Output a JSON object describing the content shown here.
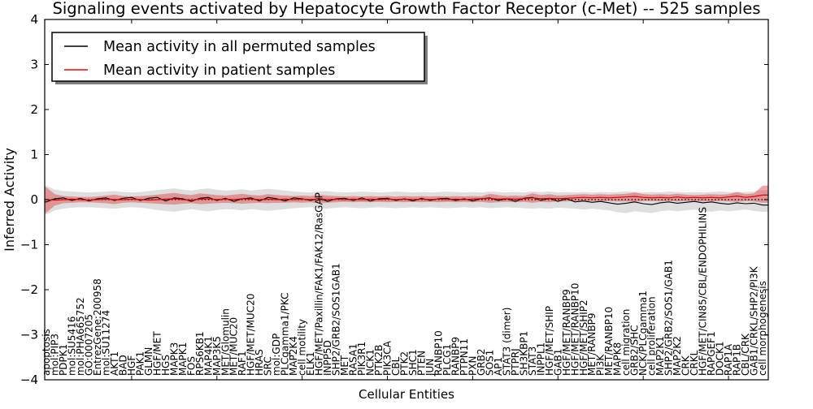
{
  "title": "Signaling events activated by Hepatocyte Growth Factor Receptor (c-Met) -- 525 samples",
  "axes": {
    "xlabel": "Cellular Entities",
    "ylabel": "Inferred Activity",
    "yticks": [
      "4",
      "3",
      "2",
      "1",
      "0",
      "−1",
      "−2",
      "−3",
      "−4"
    ],
    "ytick_values": [
      4,
      3,
      2,
      1,
      0,
      -1,
      -2,
      -3,
      -4
    ]
  },
  "legend": {
    "items": [
      {
        "label": "Mean activity in all permuted samples",
        "color": "#000000"
      },
      {
        "label": "Mean activity in patient samples",
        "color": "#ff0000"
      }
    ]
  },
  "colors": {
    "permuted_line": "#000000",
    "patient_line": "#e60000",
    "permuted_band": "#999999",
    "patient_band": "#dd3c3c",
    "zero_line": "#000000",
    "frame": "#000000"
  },
  "chart_data": {
    "type": "line",
    "title": "Signaling events activated by Hepatocyte Growth Factor Receptor (c-Met) -- 525 samples",
    "xlabel": "Cellular Entities",
    "ylabel": "Inferred Activity",
    "ylim": [
      -4,
      4
    ],
    "grid": false,
    "legend_position": "upper left",
    "entities": [
      "apoptosis",
      "mol:PIP3",
      "PDPK1",
      "mol:SU5416",
      "mol:PHA665752",
      "GO:0007205",
      "EntrezGene:200958",
      "mol:SU11274",
      "AKT1",
      "BAD",
      "HGF",
      "PAK1",
      "GLMN",
      "HGF/MET",
      "HGS",
      "MAPK3",
      "MAPK1",
      "FOS",
      "RPS6KB1",
      "MAP4K1",
      "MAP3K5",
      "MET/Glomulin",
      "MET/MUC20",
      "RAF1",
      "HGF/MET/MUC20",
      "HRAS",
      "SRC",
      "mol:GDP",
      "PLCgamma1/PKC",
      "MAP2K4",
      "cell motility",
      "ELK1",
      "HGF/MET/Paxillin/FAK1/FAK12/RasGAP",
      "INPP5D",
      "SHP2/GRB2/SOS1GAB1",
      "MET",
      "RASA1",
      "PIK3R1",
      "NCK1",
      "PTK2B",
      "PIK3CA",
      "CBL",
      "PTK2",
      "SHC1",
      "PTEN",
      "JUN",
      "RANBP10",
      "PLCG1",
      "RANBP9",
      "PTPN11",
      "PXN",
      "GRB2",
      "SOS1",
      "AP1",
      "STAT3 (dimer)",
      "PTPRJ",
      "SH3KBP1",
      "STAT3",
      "INPPL1",
      "HGF/MET/SHIP",
      "GAB1",
      "HGF/MET/RANBP9",
      "HGF/MET/RANBP10",
      "HGF/MET/SHIP2",
      "MET/RANBP9",
      "PI3K",
      "MET/RANBP10",
      "MAPK8",
      "cell migration",
      "GRB2/SHC",
      "NCK/PLCgamma1",
      "cell proliferation",
      "MAP2K1",
      "SHP2/GRB2/SOS1/GAB1",
      "MAP2K2",
      "CRK",
      "CRKL",
      "HGF/MET/CIN85/CBL/ENDOPHILINS",
      "RAPGEF1",
      "DOCK1",
      "RAP1A",
      "RAP1B",
      "CBL/CRK",
      "GAB1/CRKL/SHP2/PI3K",
      "cell morphogenesis"
    ],
    "series": [
      {
        "name": "Mean activity in all permuted samples",
        "values": [
          -0.05,
          0.02,
          0.04,
          -0.02,
          0.03,
          -0.03,
          0.02,
          0.04,
          -0.02,
          0.03,
          0.05,
          -0.02,
          0.03,
          0.05,
          -0.03,
          0.04,
          0.02,
          -0.04,
          0.03,
          0.05,
          -0.02,
          0.03,
          -0.04,
          0.02,
          0.04,
          -0.03,
          0.05,
          0.02,
          -0.03,
          0.04,
          0.02,
          -0.02,
          0.03,
          -0.04,
          0.02,
          0.03,
          -0.02,
          0.04,
          -0.03,
          0.02,
          0.03,
          -0.02,
          0.02,
          -0.03,
          0.03,
          -0.02,
          0.02,
          0.03,
          -0.02,
          0.02,
          -0.03,
          0.02,
          0.04,
          -0.02,
          0.02,
          -0.04,
          0.03,
          0.05,
          -0.02,
          0.03,
          -0.04,
          0.02,
          -0.05,
          -0.03,
          -0.06,
          -0.04,
          -0.07,
          -0.1,
          -0.08,
          -0.05,
          -0.09,
          -0.11,
          -0.07,
          -0.05,
          -0.08,
          -0.06,
          -0.04,
          -0.07,
          -0.05,
          -0.08,
          -0.1,
          -0.07,
          -0.09,
          -0.08,
          -0.12
        ]
      },
      {
        "name": "Mean activity in patient samples",
        "values": [
          0.0,
          -0.01,
          0.0,
          0.01,
          0.0,
          -0.01,
          0.0,
          0.01,
          0.0,
          0.0,
          0.01,
          0.0,
          -0.01,
          0.0,
          0.01,
          0.02,
          0.0,
          -0.01,
          0.01,
          0.02,
          0.0,
          0.01,
          0.0,
          0.02,
          0.01,
          0.0,
          0.01,
          0.0,
          0.01,
          0.0,
          0.01,
          0.0,
          0.02,
          0.0,
          0.01,
          0.0,
          0.01,
          0.0,
          0.01,
          0.0,
          0.01,
          0.0,
          0.01,
          0.0,
          0.01,
          0.0,
          0.01,
          0.0,
          0.01,
          0.0,
          0.01,
          0.02,
          0.03,
          0.01,
          0.02,
          0.01,
          0.02,
          0.04,
          0.02,
          0.03,
          0.02,
          0.03,
          0.04,
          0.05,
          0.04,
          0.05,
          0.04,
          0.05,
          0.06,
          0.07,
          0.05,
          0.04,
          0.05,
          0.04,
          0.06,
          0.04,
          0.05,
          0.04,
          0.05,
          0.04,
          0.06,
          0.08,
          0.05,
          0.07,
          0.1
        ]
      }
    ],
    "bands": {
      "permuted_upper": [
        0.31,
        0.22,
        0.19,
        0.18,
        0.17,
        0.16,
        0.17,
        0.18,
        0.19,
        0.17,
        0.16,
        0.17,
        0.19,
        0.21,
        0.23,
        0.25,
        0.22,
        0.2,
        0.23,
        0.25,
        0.22,
        0.2,
        0.21,
        0.23,
        0.2,
        0.22,
        0.24,
        0.22,
        0.2,
        0.18,
        0.17,
        0.16,
        0.18,
        0.19,
        0.17,
        0.16,
        0.17,
        0.18,
        0.17,
        0.16,
        0.17,
        0.18,
        0.17,
        0.16,
        0.17,
        0.16,
        0.17,
        0.18,
        0.17,
        0.16,
        0.17,
        0.16,
        0.18,
        0.17,
        0.16,
        0.17,
        0.16,
        0.18,
        0.17,
        0.18,
        0.16,
        0.17,
        0.16,
        0.17,
        0.16,
        0.17,
        0.16,
        0.17,
        0.18,
        0.17,
        0.16,
        0.17,
        0.16,
        0.18,
        0.17,
        0.16,
        0.17,
        0.16,
        0.17,
        0.18,
        0.17,
        0.16,
        0.17,
        0.18,
        0.21
      ],
      "permuted_lower": [
        -0.33,
        -0.24,
        -0.2,
        -0.18,
        -0.17,
        -0.17,
        -0.18,
        -0.19,
        -0.2,
        -0.18,
        -0.17,
        -0.18,
        -0.2,
        -0.23,
        -0.25,
        -0.27,
        -0.24,
        -0.21,
        -0.24,
        -0.26,
        -0.23,
        -0.21,
        -0.22,
        -0.24,
        -0.21,
        -0.23,
        -0.25,
        -0.23,
        -0.21,
        -0.19,
        -0.18,
        -0.17,
        -0.19,
        -0.2,
        -0.18,
        -0.17,
        -0.18,
        -0.19,
        -0.18,
        -0.17,
        -0.18,
        -0.19,
        -0.18,
        -0.17,
        -0.18,
        -0.17,
        -0.18,
        -0.19,
        -0.18,
        -0.17,
        -0.18,
        -0.17,
        -0.19,
        -0.18,
        -0.17,
        -0.18,
        -0.19,
        -0.2,
        -0.19,
        -0.2,
        -0.18,
        -0.19,
        -0.2,
        -0.22,
        -0.2,
        -0.22,
        -0.24,
        -0.28,
        -0.3,
        -0.26,
        -0.28,
        -0.3,
        -0.26,
        -0.24,
        -0.26,
        -0.24,
        -0.22,
        -0.25,
        -0.27,
        -0.24,
        -0.26,
        -0.24,
        -0.22,
        -0.25,
        -0.27
      ],
      "patient_upper": [
        0.27,
        0.12,
        0.08,
        0.07,
        0.06,
        0.06,
        0.07,
        0.09,
        0.11,
        0.08,
        0.07,
        0.08,
        0.09,
        0.11,
        0.13,
        0.15,
        0.12,
        0.1,
        0.14,
        0.12,
        0.1,
        0.09,
        0.11,
        0.13,
        0.1,
        0.09,
        0.12,
        0.1,
        0.09,
        0.08,
        0.09,
        0.08,
        0.11,
        0.09,
        0.08,
        0.07,
        0.08,
        0.07,
        0.08,
        0.07,
        0.08,
        0.07,
        0.08,
        0.07,
        0.08,
        0.07,
        0.08,
        0.07,
        0.08,
        0.07,
        0.08,
        0.07,
        0.13,
        0.1,
        0.08,
        0.09,
        0.08,
        0.14,
        0.1,
        0.12,
        0.09,
        0.1,
        0.11,
        0.12,
        0.11,
        0.12,
        0.11,
        0.12,
        0.13,
        0.16,
        0.12,
        0.11,
        0.12,
        0.11,
        0.13,
        0.11,
        0.1,
        0.11,
        0.12,
        0.11,
        0.12,
        0.17,
        0.12,
        0.14,
        0.31
      ],
      "patient_lower": [
        -0.29,
        -0.13,
        -0.08,
        -0.07,
        -0.06,
        -0.06,
        -0.07,
        -0.08,
        -0.1,
        -0.07,
        -0.06,
        -0.07,
        -0.08,
        -0.09,
        -0.1,
        -0.11,
        -0.09,
        -0.08,
        -0.1,
        -0.09,
        -0.08,
        -0.07,
        -0.08,
        -0.09,
        -0.08,
        -0.07,
        -0.08,
        -0.07,
        -0.07,
        -0.06,
        -0.07,
        -0.06,
        -0.08,
        -0.07,
        -0.06,
        -0.05,
        -0.06,
        -0.05,
        -0.06,
        -0.05,
        -0.06,
        -0.05,
        -0.06,
        -0.05,
        -0.06,
        -0.05,
        -0.06,
        -0.05,
        -0.06,
        -0.05,
        -0.06,
        -0.05,
        -0.07,
        -0.06,
        -0.05,
        -0.06,
        -0.05,
        -0.07,
        -0.05,
        -0.06,
        -0.04,
        -0.04,
        -0.03,
        -0.04,
        -0.03,
        -0.04,
        -0.03,
        -0.04,
        -0.04,
        -0.05,
        -0.03,
        -0.03,
        -0.04,
        -0.03,
        -0.04,
        -0.03,
        -0.03,
        -0.04,
        -0.04,
        -0.03,
        -0.04,
        -0.05,
        -0.03,
        -0.04,
        -0.07
      ]
    }
  }
}
